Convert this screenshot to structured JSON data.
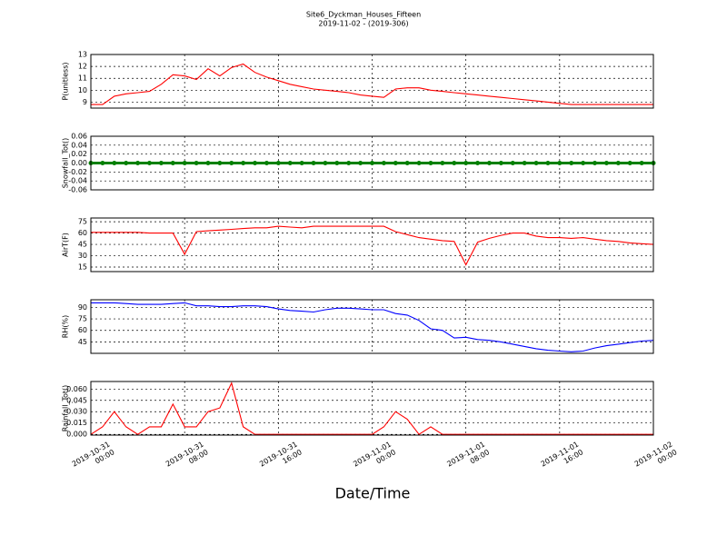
{
  "chart_data": {
    "type": "line",
    "title": "Site6_Dyckman_Houses_Fifteen",
    "subtitle": "2019-11-02 - (2019-306)",
    "xlabel": "Date/Time",
    "xlim": [
      "2019-10-31 00:00",
      "2019-11-02 00:00"
    ],
    "xticks": [
      "2019-10-31 00:00",
      "2019-10-31 08:00",
      "2019-10-31 16:00",
      "2019-11-01 00:00",
      "2019-11-01 08:00",
      "2019-11-01 16:00",
      "2019-11-02 00:00"
    ],
    "grid": true,
    "x": [
      "2019-10-31 00:00",
      "2019-10-31 01:00",
      "2019-10-31 02:00",
      "2019-10-31 03:00",
      "2019-10-31 04:00",
      "2019-10-31 05:00",
      "2019-10-31 06:00",
      "2019-10-31 07:00",
      "2019-10-31 08:00",
      "2019-10-31 09:00",
      "2019-10-31 10:00",
      "2019-10-31 11:00",
      "2019-10-31 12:00",
      "2019-10-31 13:00",
      "2019-10-31 14:00",
      "2019-10-31 15:00",
      "2019-10-31 16:00",
      "2019-10-31 17:00",
      "2019-10-31 18:00",
      "2019-10-31 19:00",
      "2019-10-31 20:00",
      "2019-10-31 21:00",
      "2019-10-31 22:00",
      "2019-10-31 23:00",
      "2019-11-01 00:00",
      "2019-11-01 01:00",
      "2019-11-01 02:00",
      "2019-11-01 03:00",
      "2019-11-01 04:00",
      "2019-11-01 05:00",
      "2019-11-01 06:00",
      "2019-11-01 07:00",
      "2019-11-01 08:00",
      "2019-11-01 09:00",
      "2019-11-01 10:00",
      "2019-11-01 11:00",
      "2019-11-01 12:00",
      "2019-11-01 13:00",
      "2019-11-01 14:00",
      "2019-11-01 15:00",
      "2019-11-01 16:00",
      "2019-11-01 17:00",
      "2019-11-01 18:00",
      "2019-11-01 19:00",
      "2019-11-01 20:00",
      "2019-11-01 21:00",
      "2019-11-01 22:00",
      "2019-11-01 23:00",
      "2019-11-02 00:00"
    ],
    "panels": [
      {
        "ylabel": "P(unitless)",
        "ylim": [
          8.5,
          13
        ],
        "yticks": [
          9,
          10,
          11,
          12,
          13
        ],
        "series": [
          {
            "color": "#ff0000",
            "values": [
              8.8,
              8.8,
              9.5,
              9.7,
              9.8,
              9.9,
              10.5,
              11.3,
              11.2,
              10.9,
              11.8,
              11.2,
              11.9,
              12.2,
              11.5,
              11.1,
              10.8,
              10.5,
              10.3,
              10.1,
              10.0,
              9.9,
              9.8,
              9.6,
              9.5,
              9.4,
              10.1,
              10.2,
              10.2,
              10.0,
              9.9,
              9.8,
              9.7,
              9.6,
              9.5,
              9.4,
              9.3,
              9.2,
              9.1,
              9.0,
              8.9,
              8.8,
              8.8,
              8.8,
              8.8,
              8.8,
              8.8,
              8.8,
              8.8
            ]
          }
        ]
      },
      {
        "ylabel": "Snowfall_Tot()",
        "ylim": [
          -0.06,
          0.06
        ],
        "yticks": [
          -0.06,
          -0.04,
          -0.02,
          {
            "value": 0,
            "label": "0.00"
          },
          0.02,
          0.04,
          0.06
        ],
        "series": [
          {
            "color": "#008000",
            "marker": true,
            "values": [
              0,
              0,
              0,
              0,
              0,
              0,
              0,
              0,
              0,
              0,
              0,
              0,
              0,
              0,
              0,
              0,
              0,
              0,
              0,
              0,
              0,
              0,
              0,
              0,
              0,
              0,
              0,
              0,
              0,
              0,
              0,
              0,
              0,
              0,
              0,
              0,
              0,
              0,
              0,
              0,
              0,
              0,
              0,
              0,
              0,
              0,
              0,
              0,
              0
            ]
          }
        ]
      },
      {
        "ylabel": "AirT(F)",
        "ylim": [
          9,
          80
        ],
        "yticks": [
          15,
          30,
          45,
          60,
          75
        ],
        "series": [
          {
            "color": "#ff0000",
            "values": [
              61,
              61,
              61,
              61,
              61,
              60,
              60,
              60,
              32,
              62,
              63,
              64,
              65,
              66,
              67,
              67,
              69,
              68,
              67,
              69,
              69,
              69,
              69,
              69,
              69,
              69,
              62,
              58,
              54,
              52,
              50,
              49,
              18,
              48,
              53,
              57,
              60,
              60,
              56,
              54,
              54,
              53,
              54,
              52,
              50,
              49,
              47,
              46,
              45
            ]
          }
        ]
      },
      {
        "ylabel": "RH(%)",
        "ylim": [
          30,
          100
        ],
        "yticks": [
          45,
          60,
          75,
          90
        ],
        "series": [
          {
            "color": "#0000ff",
            "values": [
              96,
              96,
              96,
              95,
              94,
              94,
              94,
              95,
              96,
              92,
              92,
              91,
              91,
              92,
              92,
              91,
              88,
              86,
              85,
              84,
              87,
              89,
              89,
              88,
              87,
              87,
              82,
              80,
              73,
              62,
              60,
              50,
              51,
              48,
              47,
              45,
              42,
              39,
              36,
              34,
              33,
              32,
              33,
              37,
              40,
              42,
              44,
              46,
              47
            ]
          }
        ]
      },
      {
        "ylabel": "Rainfall_Tot()",
        "ylim": [
          -0.001,
          0.07
        ],
        "yticks": [
          {
            "value": 0,
            "label": "0.000"
          },
          0.015,
          {
            "value": 0.03,
            "label": "0.030"
          },
          0.045,
          {
            "value": 0.06,
            "label": "0.060"
          }
        ],
        "series": [
          {
            "color": "#ff0000",
            "values": [
              0,
              0.01,
              0.03,
              0.01,
              0,
              0.01,
              0.01,
              0.04,
              0.01,
              0.01,
              0.03,
              0.035,
              0.068,
              0.01,
              0,
              0,
              0,
              0,
              0,
              0,
              0,
              0,
              0,
              0,
              0,
              0.01,
              0.03,
              0.02,
              0,
              0.01,
              0,
              0,
              0,
              0,
              0,
              0,
              0,
              0,
              0,
              0,
              0,
              0,
              0,
              0,
              0,
              0,
              0,
              0,
              0
            ]
          }
        ]
      }
    ]
  }
}
